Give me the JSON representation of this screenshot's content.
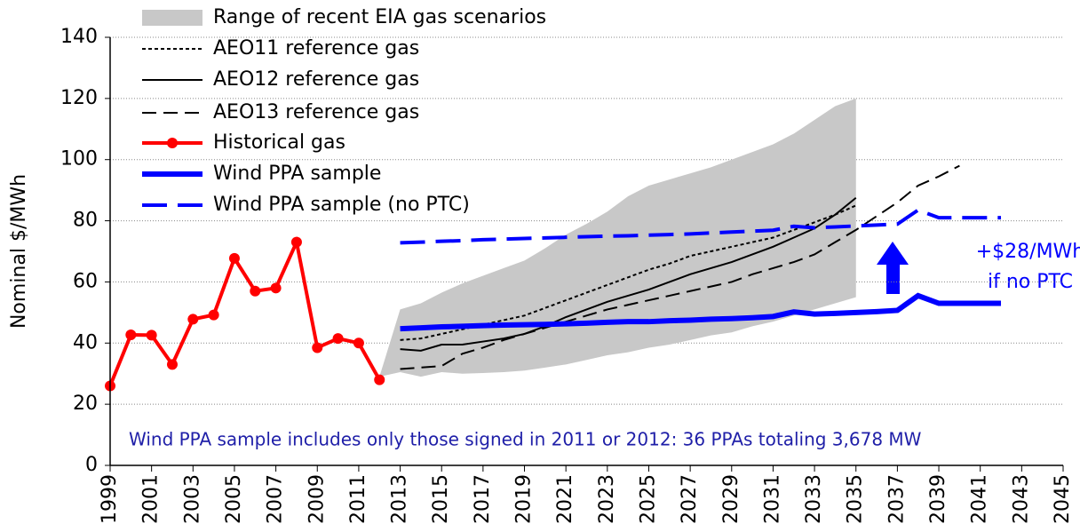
{
  "chart_data": {
    "type": "line",
    "ylabel": "Nominal $/MWh",
    "xlim": [
      1999,
      2045
    ],
    "xticks": [
      1999,
      2001,
      2003,
      2005,
      2007,
      2009,
      2011,
      2013,
      2015,
      2017,
      2019,
      2021,
      2023,
      2025,
      2027,
      2029,
      2031,
      2033,
      2035,
      2037,
      2039,
      2041,
      2043,
      2045
    ],
    "ylim": [
      0,
      140
    ],
    "yticks": [
      0,
      20,
      40,
      60,
      80,
      100,
      120,
      140
    ],
    "grid": true,
    "legend": "top-left",
    "series": [
      {
        "name": "Range of recent EIA gas scenarios",
        "type": "area",
        "color": "#c8c8c8",
        "x": [
          2012,
          2013,
          2014,
          2015,
          2016,
          2017,
          2018,
          2019,
          2020,
          2021,
          2022,
          2023,
          2024,
          2025,
          2026,
          2027,
          2028,
          2029,
          2030,
          2031,
          2032,
          2033,
          2034,
          2035
        ],
        "upper": [
          29,
          51,
          53,
          56.5,
          59.5,
          62,
          64.5,
          67,
          71,
          75.5,
          79,
          83,
          88,
          91.5,
          93.5,
          95.5,
          97.5,
          100,
          102.5,
          105,
          108.5,
          113,
          117.5,
          120
        ],
        "lower": [
          29,
          30.5,
          29,
          30.5,
          30,
          30.2,
          30.5,
          31,
          32,
          33,
          34.5,
          36,
          37,
          38.5,
          39.5,
          41,
          42.5,
          43.5,
          45.5,
          47,
          49,
          51,
          53,
          55
        ]
      },
      {
        "name": "AEO11 reference gas",
        "color": "#000000",
        "style": "dotted",
        "width": 2,
        "x": [
          2013,
          2014,
          2015,
          2016,
          2017,
          2018,
          2019,
          2020,
          2021,
          2022,
          2023,
          2024,
          2025,
          2026,
          2027,
          2028,
          2029,
          2030,
          2031,
          2032,
          2033,
          2034,
          2035
        ],
        "values": [
          41,
          41.5,
          43,
          44.5,
          46,
          47.5,
          49,
          51.5,
          54,
          56.5,
          59,
          61.5,
          64,
          66,
          68.5,
          70,
          71.5,
          73,
          74.5,
          77,
          79.5,
          82,
          85
        ]
      },
      {
        "name": "AEO12 reference gas",
        "color": "#000000",
        "style": "solid",
        "width": 2,
        "x": [
          2013,
          2014,
          2015,
          2016,
          2017,
          2018,
          2019,
          2020,
          2021,
          2022,
          2023,
          2024,
          2025,
          2026,
          2027,
          2028,
          2029,
          2030,
          2031,
          2032,
          2033,
          2034,
          2035
        ],
        "values": [
          38,
          37.5,
          39.5,
          39.5,
          40.5,
          41.5,
          43,
          45.5,
          48.5,
          51,
          53.5,
          55.5,
          57.5,
          60,
          62.5,
          64.5,
          66.5,
          69,
          71.5,
          74.5,
          77.5,
          82,
          87.5
        ]
      },
      {
        "name": "AEO13 reference gas",
        "color": "#000000",
        "style": "dashed",
        "width": 2,
        "x": [
          2013,
          2014,
          2015,
          2016,
          2017,
          2018,
          2019,
          2020,
          2021,
          2022,
          2023,
          2024,
          2025,
          2026,
          2027,
          2028,
          2029,
          2030,
          2031,
          2032,
          2033,
          2034,
          2035,
          2036,
          2037,
          2038,
          2039,
          2040
        ],
        "values": [
          31.5,
          32,
          32.5,
          36.5,
          38.5,
          41,
          43,
          45,
          47,
          49,
          51,
          52.5,
          54,
          55.5,
          57,
          58.5,
          60,
          62.5,
          64.5,
          66.5,
          69,
          73,
          77,
          81.5,
          86,
          91.5,
          94.5,
          98
        ]
      },
      {
        "name": "Historical gas",
        "color": "#ff0000",
        "style": "solid",
        "width": 4,
        "marker": true,
        "x": [
          1999,
          2000,
          2001,
          2002,
          2003,
          2004,
          2005,
          2006,
          2007,
          2008,
          2009,
          2010,
          2011,
          2012
        ],
        "values": [
          26,
          42.7,
          42.6,
          33,
          47.8,
          49.2,
          67.7,
          57,
          58,
          73,
          38.5,
          41.5,
          40,
          28
        ]
      },
      {
        "name": "Wind PPA sample",
        "color": "#0000ff",
        "style": "solid",
        "width": 6,
        "x": [
          2013,
          2014,
          2015,
          2016,
          2017,
          2018,
          2019,
          2020,
          2021,
          2022,
          2023,
          2024,
          2025,
          2026,
          2027,
          2028,
          2029,
          2030,
          2031,
          2032,
          2033,
          2034,
          2035,
          2036,
          2037,
          2038,
          2039,
          2040,
          2041,
          2042
        ],
        "values": [
          44.7,
          45,
          45.3,
          45.5,
          45.7,
          45.9,
          46,
          46.1,
          46.3,
          46.5,
          46.8,
          47,
          47,
          47.3,
          47.5,
          47.8,
          48,
          48.3,
          48.7,
          50.2,
          49.5,
          49.7,
          50,
          50.3,
          50.7,
          55.5,
          53,
          53,
          53,
          53
        ]
      },
      {
        "name": "Wind PPA sample (no PTC)",
        "color": "#0000ff",
        "style": "longdash",
        "width": 4,
        "x": [
          2013,
          2014,
          2015,
          2016,
          2017,
          2018,
          2019,
          2020,
          2021,
          2022,
          2023,
          2024,
          2025,
          2026,
          2027,
          2028,
          2029,
          2030,
          2031,
          2032,
          2033,
          2034,
          2035,
          2036,
          2037,
          2038,
          2039,
          2040,
          2041,
          2042
        ],
        "values": [
          72.8,
          73,
          73.3,
          73.5,
          73.8,
          74,
          74.2,
          74.4,
          74.6,
          74.8,
          75,
          75.1,
          75.3,
          75.5,
          75.7,
          76,
          76.3,
          76.6,
          76.9,
          78.2,
          77.7,
          78,
          78.3,
          78.6,
          78.9,
          83.5,
          81,
          81,
          81,
          81
        ]
      }
    ],
    "annotations": [
      "+$28/MWh",
      "if no PTC",
      "Wind PPA sample includes only those signed in 2011 or 2012:  36 PPAs totaling 3,678 MW"
    ]
  }
}
